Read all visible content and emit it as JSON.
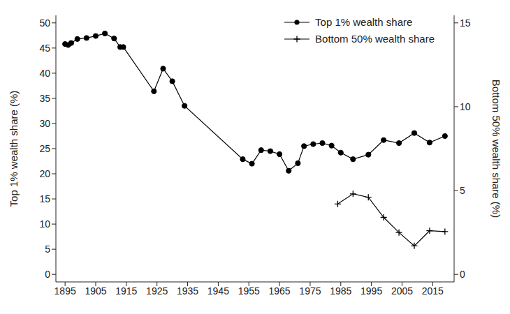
{
  "chart_data": {
    "type": "line",
    "y_label": "Top 1% wealth share (%)",
    "y2_label": "Bottom 50% wealth share (%)",
    "xlim": [
      1892,
      2022
    ],
    "xticks": [
      1895,
      1905,
      1915,
      1925,
      1935,
      1945,
      1955,
      1965,
      1975,
      1985,
      1995,
      2005,
      2015
    ],
    "ylim": [
      -1.5,
      51.5
    ],
    "yticks": [
      0,
      5,
      10,
      15,
      20,
      25,
      30,
      35,
      40,
      45,
      50
    ],
    "y2lim": [
      -0.45,
      15.45
    ],
    "y2ticks": [
      0,
      5,
      10,
      15
    ],
    "grid": false,
    "legend": "upper right",
    "series": [
      {
        "name": "Top 1% wealth share",
        "color": "#000000",
        "marker": "circle",
        "x": [
          1895,
          1896,
          1897,
          1899,
          1902,
          1905,
          1908,
          1911,
          1913,
          1914,
          1924,
          1927,
          1930,
          1934,
          1953,
          1956,
          1959,
          1962,
          1965,
          1968,
          1971,
          1973,
          1976,
          1979,
          1982,
          1985,
          1989,
          1994,
          1999,
          2004,
          2009,
          2014,
          2019
        ],
        "values": [
          45.8,
          45.6,
          46.0,
          46.8,
          47.0,
          47.4,
          47.9,
          46.9,
          45.2,
          45.2,
          36.4,
          40.9,
          38.4,
          33.5,
          22.9,
          22.0,
          24.7,
          24.5,
          23.9,
          20.6,
          22.1,
          25.5,
          25.9,
          26.1,
          25.6,
          24.2,
          22.9,
          23.8,
          26.7,
          26.1,
          28.1,
          26.2,
          27.5
        ]
      },
      {
        "name": "Bottom 50% wealth share",
        "color": "#000000",
        "marker": "plus",
        "axis": "y2",
        "x": [
          1984,
          1989,
          1994,
          1999,
          2004,
          2009,
          2014,
          2019
        ],
        "values": [
          4.2,
          4.8,
          4.6,
          3.4,
          2.5,
          1.7,
          2.6,
          2.55
        ]
      }
    ]
  }
}
